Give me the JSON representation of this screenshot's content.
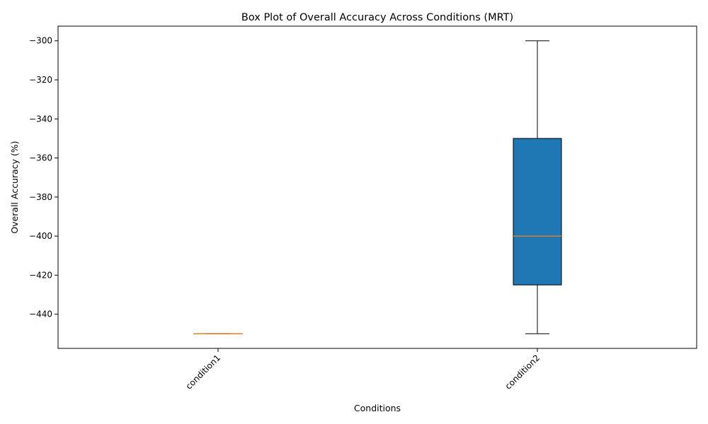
{
  "chart_data": {
    "type": "box",
    "title": "Box Plot of Overall Accuracy Across Conditions (MRT)",
    "xlabel": "Conditions",
    "ylabel": "Overall Accuracy (%)",
    "ylim": [
      -457.5,
      -292.5
    ],
    "yticks": [
      -300,
      -320,
      -340,
      -360,
      -380,
      -400,
      -420,
      -440
    ],
    "ytick_labels": [
      "−300",
      "−320",
      "−340",
      "−360",
      "−380",
      "−400",
      "−420",
      "−440"
    ],
    "categories": [
      "condition1",
      "condition2"
    ],
    "boxes": [
      {
        "name": "condition1",
        "whisker_low": -450,
        "q1": -450,
        "median": -450,
        "q3": -450,
        "whisker_high": -450
      },
      {
        "name": "condition2",
        "whisker_low": -450,
        "q1": -425,
        "median": -400,
        "q3": -350,
        "whisker_high": -300
      }
    ],
    "box_color": "#1f77b4",
    "median_color": "#ff7f0e",
    "grid": false,
    "legend": "none"
  }
}
